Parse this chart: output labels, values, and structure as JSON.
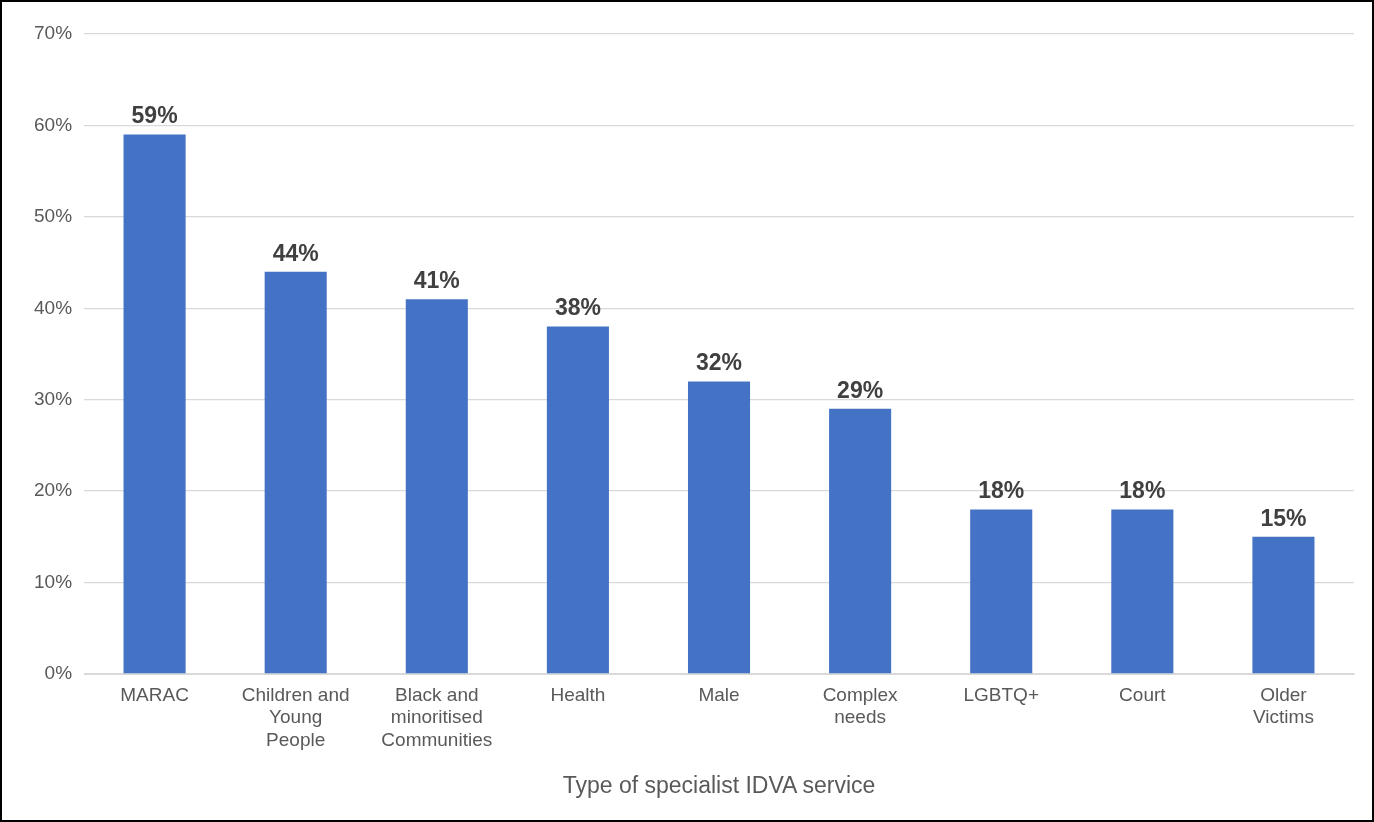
{
  "chart_data": {
    "type": "bar",
    "xlabel": "Type of specialist IDVA service",
    "categories": [
      "MARAC",
      "Children and Young People",
      "Black and minoritised Communities",
      "Health",
      "Male",
      "Complex needs",
      "LGBTQ+",
      "Court",
      "Older Victims"
    ],
    "values": [
      59,
      44,
      41,
      38,
      32,
      29,
      18,
      18,
      15
    ],
    "value_labels": [
      "59%",
      "44%",
      "41%",
      "38%",
      "32%",
      "29%",
      "18%",
      "18%",
      "15%"
    ],
    "color": "#4472c4",
    "ylim": [
      0,
      70
    ],
    "yticks": [
      {
        "value": 0,
        "label": "0%"
      },
      {
        "value": 10,
        "label": "10%"
      },
      {
        "value": 20,
        "label": "20%"
      },
      {
        "value": 30,
        "label": "30%"
      },
      {
        "value": 40,
        "label": "40%"
      },
      {
        "value": 50,
        "label": "50%"
      },
      {
        "value": 60,
        "label": "60%"
      },
      {
        "value": 70,
        "label": "70%"
      }
    ],
    "grid": "y",
    "legend": false
  }
}
